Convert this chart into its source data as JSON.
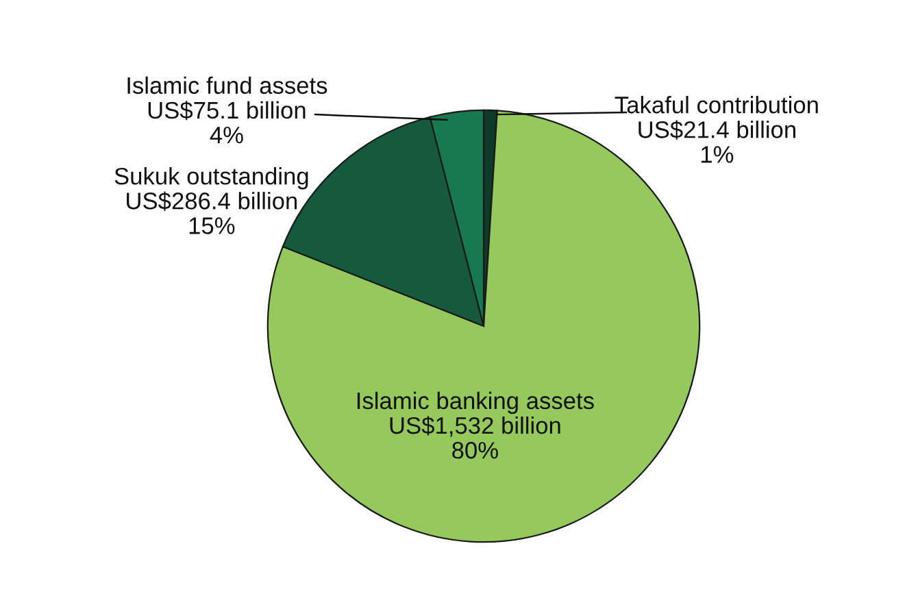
{
  "chart_data": {
    "type": "pie",
    "categories": [
      "Takaful contribution",
      "Islamic banking assets",
      "Sukuk outstanding",
      "Islamic fund assets"
    ],
    "values": [
      1,
      80,
      15,
      4
    ],
    "colors": [
      "#0e3b28",
      "#96c95c",
      "#155a3c",
      "#167a4e"
    ],
    "value_labels": [
      "US$21.4 billion\n1%",
      "US$1,532 billion\n80%",
      "US$286.4 billion\n15%",
      "US$75.1 billion\n4%"
    ]
  }
}
